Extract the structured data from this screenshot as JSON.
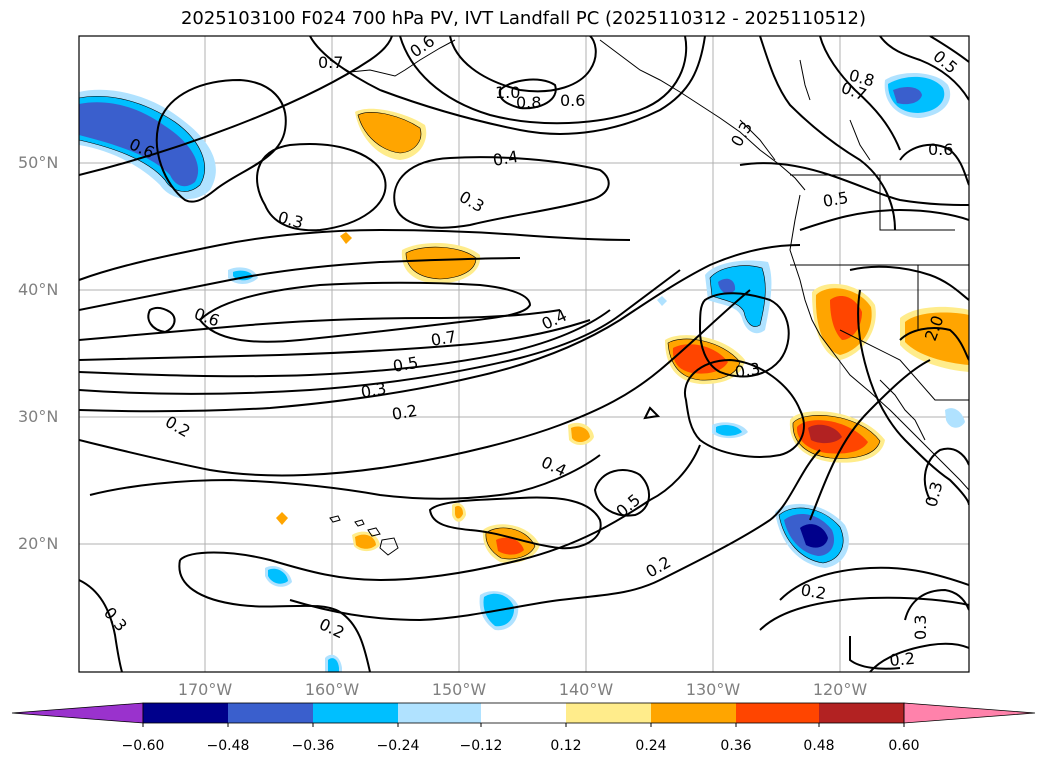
{
  "title": "2025103100 F024 700 hPa PV, IVT Landfall PC (2025110312 - 2025110512)",
  "lat_labels": [
    "50°N",
    "40°N",
    "30°N",
    "20°N"
  ],
  "lon_labels": [
    "170°W",
    "160°W",
    "150°W",
    "140°W",
    "130°W",
    "120°W"
  ],
  "contour_labels": [
    "0.7",
    "0.6",
    "1.0",
    "0.8",
    "0.6",
    "0.8",
    "0.7",
    "0.5",
    "0.6",
    "0.6",
    "0.4",
    "0.3",
    "0.3",
    "0.5",
    "0.6",
    "0.7",
    "0.4",
    "0.5",
    "0.3",
    "0.2",
    "0.3",
    "0.2",
    "0.4",
    "0.5",
    "0.2",
    "0.2",
    "0.3",
    "0.2",
    "0.3",
    "0.2",
    "0.3",
    "2.0",
    "0.3"
  ],
  "colorbar": {
    "tick_labels": [
      "−0.60",
      "−0.48",
      "−0.36",
      "−0.24",
      "−0.12",
      "0.12",
      "0.24",
      "0.36",
      "0.48",
      "0.60"
    ],
    "colors": [
      "#9a32cd",
      "#00008b",
      "#3a5fcd",
      "#00bfff",
      "#b0e2ff",
      "#ffffff",
      "#ffec8b",
      "#ffa500",
      "#ff4500",
      "#b22222",
      "#ff82ab"
    ]
  },
  "legend_colors": {
    "neg_light": "#b0e2ff",
    "neg_mid": "#00bfff",
    "neg_strong": "#3a5fcd",
    "neg_max": "#00008b",
    "pos_light": "#ffec8b",
    "pos_mid": "#ffa500",
    "pos_strong": "#ff4500",
    "pos_max": "#b22222"
  }
}
